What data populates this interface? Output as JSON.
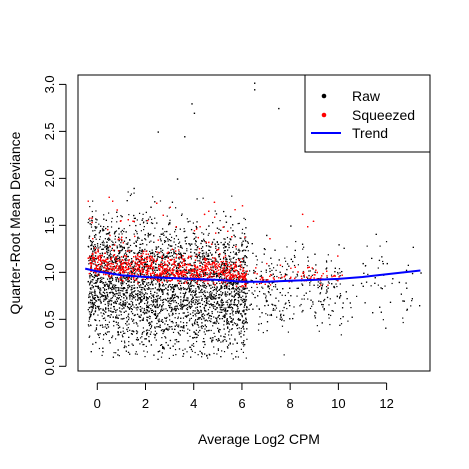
{
  "chart_data": {
    "type": "scatter",
    "title": "",
    "xlabel": "Average Log2 CPM",
    "ylabel": "Quarter-Root Mean Deviance",
    "xlim": [
      -0.8,
      13.8
    ],
    "ylim": [
      -0.05,
      3.1
    ],
    "x_ticks": [
      0,
      2,
      4,
      6,
      8,
      10,
      12
    ],
    "y_ticks": [
      0.0,
      0.5,
      1.0,
      1.5,
      2.0,
      2.5,
      3.0
    ],
    "x_tick_labels": [
      "0",
      "2",
      "4",
      "6",
      "8",
      "10",
      "12"
    ],
    "y_tick_labels": [
      "0.0",
      "0.5",
      "1.0",
      "1.5",
      "2.0",
      "2.5",
      "3.0"
    ],
    "legend_position": "top-right",
    "grid": false,
    "series": [
      {
        "name": "Raw",
        "kind": "points",
        "color": "#000000",
        "description_points": "dense cloud; sampled representative points",
        "points": [
          [
            -0.3,
            0.55
          ],
          [
            0.0,
            0.35
          ],
          [
            0.2,
            0.2
          ],
          [
            0.4,
            0.45
          ],
          [
            0.6,
            1.3
          ],
          [
            0.8,
            0.7
          ],
          [
            1.0,
            1.6
          ],
          [
            1.2,
            0.4
          ],
          [
            1.5,
            1.9
          ],
          [
            2.0,
            0.3
          ],
          [
            2.2,
            1.7
          ],
          [
            2.5,
            2.5
          ],
          [
            3.0,
            0.2
          ],
          [
            3.3,
            2.0
          ],
          [
            3.6,
            2.45
          ],
          [
            3.9,
            2.8
          ],
          [
            4.0,
            2.7
          ],
          [
            4.3,
            0.15
          ],
          [
            4.6,
            1.5
          ],
          [
            5.0,
            0.3
          ],
          [
            5.5,
            1.6
          ],
          [
            5.9,
            0.5
          ],
          [
            6.5,
            3.02
          ],
          [
            6.5,
            2.95
          ],
          [
            7.0,
            1.4
          ],
          [
            7.5,
            2.75
          ],
          [
            7.7,
            0.55
          ],
          [
            8.0,
            1.5
          ],
          [
            8.5,
            0.6
          ],
          [
            9.0,
            1.2
          ],
          [
            9.5,
            0.8
          ],
          [
            10.0,
            1.3
          ],
          [
            10.3,
            0.8
          ],
          [
            11.0,
            1.1
          ],
          [
            11.5,
            0.95
          ],
          [
            12.0,
            1.1
          ],
          [
            12.5,
            0.9
          ],
          [
            13.4,
            1.0
          ]
        ]
      },
      {
        "name": "Squeezed",
        "kind": "points",
        "color": "#ff0000",
        "description_points": "squeezed toward trend; sampled representative points",
        "points": [
          [
            -0.3,
            1.05
          ],
          [
            0.0,
            1.25
          ],
          [
            0.5,
            1.4
          ],
          [
            1.0,
            1.1
          ],
          [
            1.5,
            1.55
          ],
          [
            2.0,
            1.2
          ],
          [
            2.5,
            1.35
          ],
          [
            3.0,
            1.7
          ],
          [
            3.5,
            1.15
          ],
          [
            4.0,
            1.45
          ],
          [
            4.5,
            1.1
          ],
          [
            5.0,
            1.25
          ],
          [
            5.5,
            1.05
          ],
          [
            6.0,
            1.15
          ],
          [
            6.5,
            1.0
          ],
          [
            7.0,
            1.1
          ],
          [
            7.5,
            0.95
          ],
          [
            8.0,
            1.05
          ],
          [
            8.5,
            1.0
          ],
          [
            9.0,
            0.98
          ],
          [
            9.5,
            0.97
          ],
          [
            10.0,
            0.96
          ]
        ]
      },
      {
        "name": "Trend",
        "kind": "line",
        "color": "#0000ff",
        "x": [
          -0.5,
          0.0,
          0.5,
          1.0,
          2.0,
          3.0,
          4.0,
          5.0,
          6.0,
          7.0,
          8.0,
          9.0,
          10.0,
          11.0,
          12.0,
          13.4
        ],
        "y": [
          1.04,
          1.01,
          0.99,
          0.97,
          0.95,
          0.94,
          0.93,
          0.92,
          0.9,
          0.9,
          0.91,
          0.92,
          0.93,
          0.95,
          0.98,
          1.02
        ]
      }
    ]
  }
}
